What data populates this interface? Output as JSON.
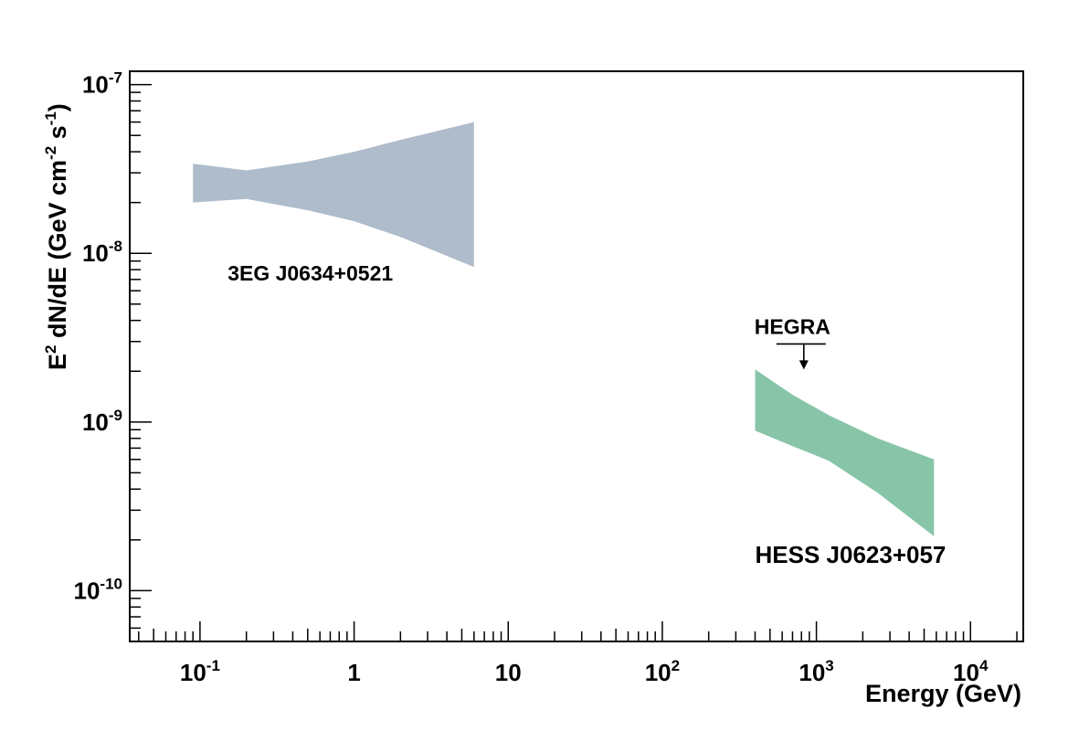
{
  "chart_data": {
    "type": "area",
    "x_scale": "log",
    "y_scale": "log",
    "xlim": [
      0.035,
      22000
    ],
    "ylim": [
      5e-11,
      1.2e-07
    ],
    "xlabel": "Energy (GeV)",
    "ylabel": {
      "main": "E",
      "sup1": "2",
      "mid": " dN/dE (GeV cm",
      "sup2": "-2",
      "mid2": " s",
      "sup3": "-1",
      "end": ")"
    },
    "x_ticks": [
      {
        "value": 0.1,
        "base": "10",
        "exp": "-1"
      },
      {
        "value": 1,
        "base": "1",
        "exp": ""
      },
      {
        "value": 10,
        "base": "10",
        "exp": ""
      },
      {
        "value": 100,
        "base": "10",
        "exp": "2"
      },
      {
        "value": 1000,
        "base": "10",
        "exp": "3"
      },
      {
        "value": 10000,
        "base": "10",
        "exp": "4"
      }
    ],
    "y_ticks": [
      {
        "value": 1e-07,
        "base": "10",
        "exp": "-7"
      },
      {
        "value": 1e-08,
        "base": "10",
        "exp": "-8"
      },
      {
        "value": 1e-09,
        "base": "10",
        "exp": "-9"
      },
      {
        "value": 1e-10,
        "base": "10",
        "exp": "-10"
      }
    ],
    "grid": false,
    "series": [
      {
        "name": "3EG J0634+0521",
        "color": "#aebccb",
        "upper": [
          [
            0.09,
            3.4e-08
          ],
          [
            0.2,
            3.1e-08
          ],
          [
            0.5,
            3.5e-08
          ],
          [
            1.0,
            4e-08
          ],
          [
            2.0,
            4.7e-08
          ],
          [
            6.0,
            6e-08
          ]
        ],
        "lower": [
          [
            0.09,
            2e-08
          ],
          [
            0.2,
            2.1e-08
          ],
          [
            0.5,
            1.8e-08
          ],
          [
            1.0,
            1.55e-08
          ],
          [
            2.0,
            1.25e-08
          ],
          [
            6.0,
            8.3e-09
          ]
        ]
      },
      {
        "name": "HESS J0623+057",
        "color": "#88c5a8",
        "upper": [
          [
            400,
            2.05e-09
          ],
          [
            700,
            1.45e-09
          ],
          [
            1200,
            1.1e-09
          ],
          [
            2500,
            8e-10
          ],
          [
            5800,
            6e-10
          ]
        ],
        "lower": [
          [
            400,
            8.9e-10
          ],
          [
            700,
            7.2e-10
          ],
          [
            1200,
            5.9e-10
          ],
          [
            2500,
            3.8e-10
          ],
          [
            5800,
            2.1e-10
          ]
        ]
      }
    ],
    "upper_limits": [
      {
        "name": "HEGRA",
        "x_range": [
          550,
          1150
        ],
        "y": 2.9e-09,
        "arrow_to_y": 2.1e-09
      }
    ]
  }
}
